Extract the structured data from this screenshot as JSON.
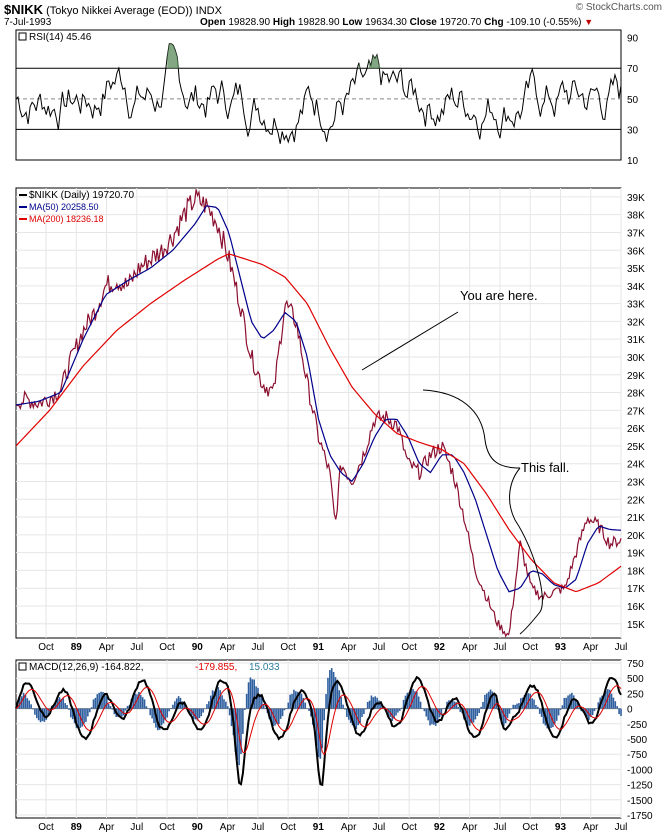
{
  "header": {
    "symbol": "$NIKK",
    "name": "(Tokyo Nikkei Average (EOD))",
    "exchange": "INDX",
    "date": "7-Jul-1993",
    "open_label": "Open",
    "open_value": "19828.90",
    "high_label": "High",
    "high_value": "19828.90",
    "low_label": "Low",
    "low_value": "19634.30",
    "close_label": "Close",
    "close_value": "19720.70",
    "chg_label": "Chg",
    "chg_value": "-109.10 (-0.55%)",
    "watermark": "© StockCharts.com"
  },
  "colors": {
    "price": "#8b1030",
    "ma50": "#00008b",
    "ma200": "#e00000",
    "rsi": "#000000",
    "histogram": "#2f5f9f",
    "legend_swatch_black": "#000000"
  },
  "chart_data": [
    {
      "type": "line",
      "panel": "rsi",
      "legend": "RSI(14) 45.46",
      "y_ticks": [
        "90",
        "70",
        "50",
        "30",
        "10"
      ],
      "ylim": [
        10,
        95
      ],
      "reference_lines": [
        70,
        30
      ],
      "midline": 50,
      "overbought_fill": true
    },
    {
      "type": "line",
      "panel": "price",
      "series": [
        {
          "name": "$NIKK (Daily) 19720.70",
          "color": "#8b1030",
          "x": [
            0,
            2,
            4,
            6,
            8,
            10,
            12,
            14,
            16,
            18,
            20,
            22,
            24,
            26,
            28,
            30,
            32,
            34,
            36,
            38,
            40,
            42,
            44,
            46,
            48,
            50,
            52,
            54,
            56,
            57,
            58,
            60,
            62,
            64,
            66,
            68,
            70,
            72,
            74,
            76,
            78,
            80,
            82,
            84,
            86,
            88,
            90,
            92,
            94,
            96,
            98,
            100,
            102,
            104,
            106,
            108
          ],
          "values": [
            27500,
            27600,
            27400,
            27700,
            28200,
            30000,
            31500,
            32500,
            34000,
            34300,
            34000,
            35000,
            35500,
            36000,
            36800,
            38000,
            38900,
            38500,
            37500,
            35500,
            33000,
            30000,
            28500,
            28000,
            33000,
            32000,
            28500,
            25500,
            23500,
            20500,
            24000,
            23000,
            24500,
            26500,
            26600,
            26200,
            24000,
            23500,
            24500,
            25000,
            23500,
            21000,
            18000,
            16500,
            15000,
            14300,
            19500,
            17000,
            16500,
            16800,
            17000,
            19000,
            21000,
            20500,
            19500,
            19720
          ]
        },
        {
          "name": "MA(50) 20258.50",
          "color": "#00008b",
          "x": [
            0,
            4,
            8,
            12,
            16,
            20,
            24,
            28,
            32,
            34,
            36,
            38,
            40,
            42,
            44,
            46,
            48,
            50,
            52,
            54,
            56,
            58,
            60,
            62,
            64,
            66,
            68,
            70,
            72,
            74,
            76,
            78,
            80,
            82,
            84,
            86,
            88,
            90,
            92,
            94,
            96,
            98,
            100,
            102,
            104,
            106,
            108
          ],
          "values": [
            27300,
            27500,
            28000,
            31000,
            33500,
            34300,
            35000,
            36000,
            37500,
            38500,
            38400,
            37000,
            34500,
            32000,
            31000,
            31500,
            32500,
            32000,
            30000,
            26500,
            24500,
            23500,
            23000,
            24000,
            25500,
            26500,
            26500,
            25500,
            24000,
            23500,
            24500,
            24500,
            23500,
            22000,
            20000,
            18000,
            16800,
            17000,
            18000,
            17800,
            17200,
            17000,
            17500,
            19500,
            20500,
            20300,
            20258
          ]
        },
        {
          "name": "MA(200) 18236.18",
          "color": "#e00000",
          "x": [
            0,
            6,
            12,
            18,
            24,
            30,
            36,
            38,
            40,
            44,
            48,
            52,
            56,
            60,
            64,
            68,
            72,
            76,
            80,
            84,
            88,
            92,
            96,
            100,
            104,
            108
          ],
          "values": [
            25000,
            27000,
            29500,
            31500,
            33000,
            34300,
            35500,
            35800,
            35600,
            35200,
            34500,
            33000,
            30500,
            28300,
            26800,
            25700,
            25200,
            24800,
            24000,
            22300,
            20300,
            18600,
            17300,
            16800,
            17300,
            18236
          ]
        }
      ],
      "y_ticks": [
        "39K",
        "38K",
        "37K",
        "36K",
        "35K",
        "34K",
        "33K",
        "32K",
        "31K",
        "30K",
        "29K",
        "28K",
        "27K",
        "26K",
        "25K",
        "24K",
        "23K",
        "22K",
        "21K",
        "20K",
        "19K",
        "18K",
        "17K",
        "16K",
        "15K"
      ],
      "x_ticks": [
        "Oct",
        "89",
        "Apr",
        "Jul",
        "Oct",
        "90",
        "Apr",
        "Jul",
        "Oct",
        "91",
        "Apr",
        "Jul",
        "Oct",
        "92",
        "Apr",
        "Jul",
        "Oct",
        "93",
        "Apr",
        "Jul"
      ],
      "annotations": [
        {
          "text": "You are here."
        },
        {
          "text": "This fall."
        }
      ]
    },
    {
      "type": "line",
      "panel": "macd",
      "legend": {
        "label": "MACD(12,26,9)",
        "macd": "-164.822",
        "signal": "-179.855",
        "histogram": "15.033"
      },
      "y_ticks": [
        "750",
        "500",
        "250",
        "0",
        "-250",
        "-500",
        "-750",
        "-1000",
        "-1250",
        "-1500",
        "-1750"
      ],
      "ylim": [
        -1800,
        800
      ],
      "x_ticks": [
        "Oct",
        "89",
        "Apr",
        "Jul",
        "Oct",
        "90",
        "Apr",
        "Jul",
        "Oct",
        "91",
        "Apr",
        "Jul",
        "Oct",
        "92",
        "Apr",
        "Jul",
        "Oct",
        "93",
        "Apr",
        "Jul"
      ]
    }
  ]
}
